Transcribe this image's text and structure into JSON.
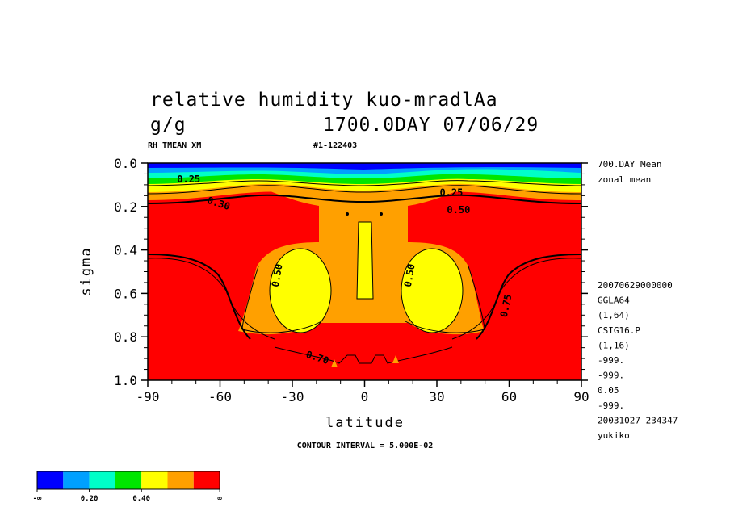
{
  "header": {
    "title_line1": "relative humidity  kuo-mradlAa",
    "units": "g/g",
    "time_label": "1700.0DAY 07/06/29",
    "var_label": "RH TMEAN XM",
    "run_id": "#1-122403"
  },
  "side_info": {
    "top": [
      "700.DAY Mean",
      "zonal mean"
    ],
    "meta": [
      "20070629000000",
      "GGLA64",
      "(1,64)",
      "CSIG16.P",
      "(1,16)",
      "-999.",
      "-999.",
      "0.05",
      "-999.",
      "20031027 234347",
      "yukiko"
    ]
  },
  "footer": {
    "contour_interval": "CONTOUR INTERVAL = 5.000E-02"
  },
  "colorbar": {
    "colors": [
      "#0000ff",
      "#00a0ff",
      "#00ffc8",
      "#00e600",
      "#ffff00",
      "#ffa000",
      "#ff0000"
    ],
    "labels": [
      "-∞",
      "0.20",
      "0.40",
      "∞"
    ]
  },
  "chart_data": {
    "type": "heatmap",
    "xlabel": "latitude",
    "ylabel": "sigma",
    "xlim": [
      -90,
      90
    ],
    "ylim": [
      1.0,
      0.0
    ],
    "x_ticks": [
      "-90",
      "-60",
      "-30",
      "0",
      "30",
      "60",
      "90"
    ],
    "y_ticks": [
      "0.0",
      "0.2",
      "0.4",
      "0.6",
      "0.8",
      "1.0"
    ],
    "contour_labels": [
      {
        "text": "0.25",
        "lat": -73,
        "sigma": 0.09
      },
      {
        "text": "0.30",
        "lat": -61,
        "sigma": 0.2
      },
      {
        "text": "0.25",
        "lat": 36,
        "sigma": 0.15
      },
      {
        "text": "0.50",
        "lat": 39,
        "sigma": 0.23
      },
      {
        "text": "0.50",
        "lat": -35,
        "sigma": 0.52
      },
      {
        "text": "0.50",
        "lat": 20,
        "sigma": 0.52
      },
      {
        "text": "0.75",
        "lat": 60,
        "sigma": 0.66
      },
      {
        "text": "0.70",
        "lat": -20,
        "sigma": 0.91
      }
    ]
  }
}
